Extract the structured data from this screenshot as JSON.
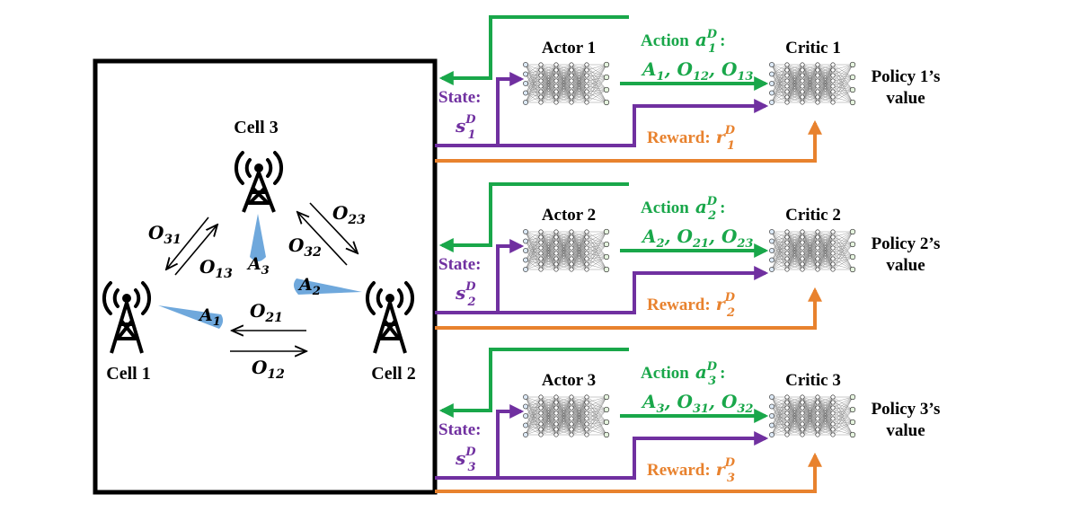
{
  "colors": {
    "action": "#19a74a",
    "state": "#7030a0",
    "reward": "#e8822e",
    "beam": "#6fa8dc",
    "frame": "#000000"
  },
  "cells": [
    {
      "label": "Cell 1"
    },
    {
      "label": "Cell 2"
    },
    {
      "label": "Cell 3"
    }
  ],
  "antenna_icon": "radio-tower-icon",
  "beams": [
    {
      "label_base": "A",
      "label_sub": "1"
    },
    {
      "label_base": "A",
      "label_sub": "2"
    },
    {
      "label_base": "A",
      "label_sub": "3"
    }
  ],
  "offsets": {
    "o31": {
      "base": "O",
      "sub": "31"
    },
    "o13": {
      "base": "O",
      "sub": "13"
    },
    "o23": {
      "base": "O",
      "sub": "23"
    },
    "o32": {
      "base": "O",
      "sub": "32"
    },
    "o21": {
      "base": "O",
      "sub": "21"
    },
    "o12": {
      "base": "O",
      "sub": "12"
    }
  },
  "agents": [
    {
      "actor": "Actor 1",
      "critic": "Critic 1",
      "action_word": "Action",
      "action_var": "a",
      "action_sub": "1",
      "action_sup": "D",
      "action_items": [
        {
          "base": "A",
          "sub": "1"
        },
        {
          "base": "O",
          "sub": "12"
        },
        {
          "base": "O",
          "sub": "13"
        }
      ],
      "state_word": "State:",
      "state_var": "s",
      "state_sub": "1",
      "state_sup": "D",
      "reward_word": "Reward:",
      "reward_var": "r",
      "reward_sub": "1",
      "reward_sup": "D",
      "value_line1": "Policy 1’s",
      "value_line2": "value"
    },
    {
      "actor": "Actor 2",
      "critic": "Critic 2",
      "action_word": "Action",
      "action_var": "a",
      "action_sub": "2",
      "action_sup": "D",
      "action_items": [
        {
          "base": "A",
          "sub": "2"
        },
        {
          "base": "O",
          "sub": "21"
        },
        {
          "base": "O",
          "sub": "23"
        }
      ],
      "state_word": "State:",
      "state_var": "s",
      "state_sub": "2",
      "state_sup": "D",
      "reward_word": "Reward:",
      "reward_var": "r",
      "reward_sub": "2",
      "reward_sup": "D",
      "value_line1": "Policy 2’s",
      "value_line2": "value"
    },
    {
      "actor": "Actor 3",
      "critic": "Critic 3",
      "action_word": "Action",
      "action_var": "a",
      "action_sub": "3",
      "action_sup": "D",
      "action_items": [
        {
          "base": "A",
          "sub": "3"
        },
        {
          "base": "O",
          "sub": "31"
        },
        {
          "base": "O",
          "sub": "32"
        }
      ],
      "state_word": "State:",
      "state_var": "s",
      "state_sub": "3",
      "state_sup": "D",
      "reward_word": "Reward:",
      "reward_var": "r",
      "reward_sub": "3",
      "reward_sup": "D",
      "value_line1": "Policy 3’s",
      "value_line2": "value"
    }
  ]
}
